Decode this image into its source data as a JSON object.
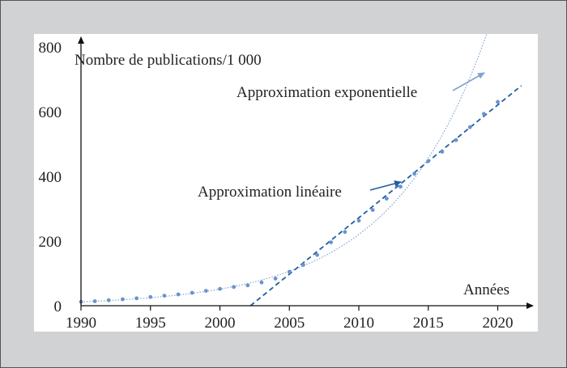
{
  "chart_data": {
    "type": "scatter",
    "ylabel": "Nombre de publications/1 000",
    "xlabel": "Années",
    "xlim": [
      1990,
      2022
    ],
    "ylim": [
      0,
      800
    ],
    "xticks": [
      1990,
      1995,
      2000,
      2005,
      2010,
      2015,
      2020
    ],
    "yticks": [
      0,
      200,
      400,
      600,
      800
    ],
    "grid": false,
    "colors": {
      "points": "#6a93cf",
      "linear": "#1e5fa0",
      "exponential": "#7ea3d6",
      "axes": "#111111",
      "background": "#d0d2d3",
      "plot_background": "#ffffff"
    },
    "series": [
      {
        "x": [
          1990,
          1991,
          1992,
          1993,
          1994,
          1995,
          1996,
          1997,
          1998,
          1999,
          2000,
          2001,
          2002,
          2003,
          2004,
          2005,
          2006,
          2007,
          2008,
          2009,
          2010,
          2011,
          2012,
          2013,
          2014,
          2015,
          2016,
          2017,
          2018,
          2019,
          2020
        ],
        "values": [
          12,
          14,
          17,
          20,
          23,
          27,
          31,
          35,
          40,
          46,
          52,
          58,
          63,
          72,
          84,
          105,
          126,
          157,
          196,
          228,
          263,
          296,
          331,
          368,
          408,
          447,
          476,
          512,
          552,
          593,
          630
        ]
      }
    ],
    "trendlines": [
      {
        "label": "Approximation linéaire",
        "type": "linear",
        "x": [
          2002.2,
          2021.7
        ],
        "y": [
          0,
          680
        ]
      },
      {
        "label": "Approximation exponentielle",
        "type": "exponential",
        "a": 12,
        "b": 0.1455,
        "x0": 1990,
        "xmax": 2019.5
      }
    ]
  }
}
